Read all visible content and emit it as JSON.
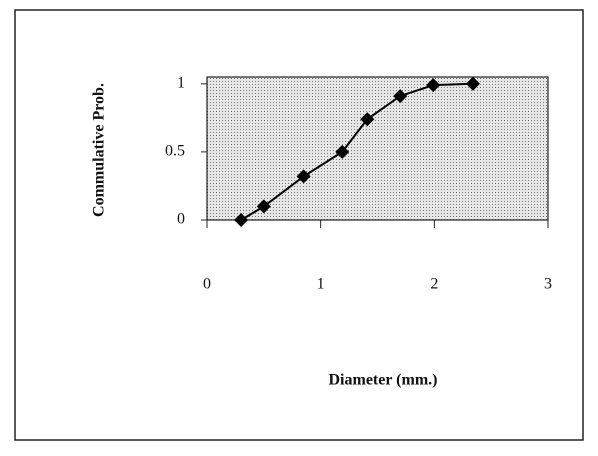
{
  "chart_data": {
    "type": "line",
    "x_label": "Diameter (mm.)",
    "y_label": "Commulative Prob.",
    "x": [
      0.3,
      0.5,
      0.85,
      1.19,
      1.41,
      1.7,
      1.99,
      2.34
    ],
    "values": [
      0,
      0.1,
      0.32,
      0.5,
      0.74,
      0.91,
      0.99,
      1.0
    ],
    "color": "#000000",
    "marker": "diamond",
    "xlim": [
      0,
      3
    ],
    "xticks": [
      0,
      1,
      2,
      3
    ],
    "ylim": [
      0,
      1.05
    ],
    "yticks": [
      0,
      0.5,
      1
    ],
    "plot_background": "stipple"
  }
}
